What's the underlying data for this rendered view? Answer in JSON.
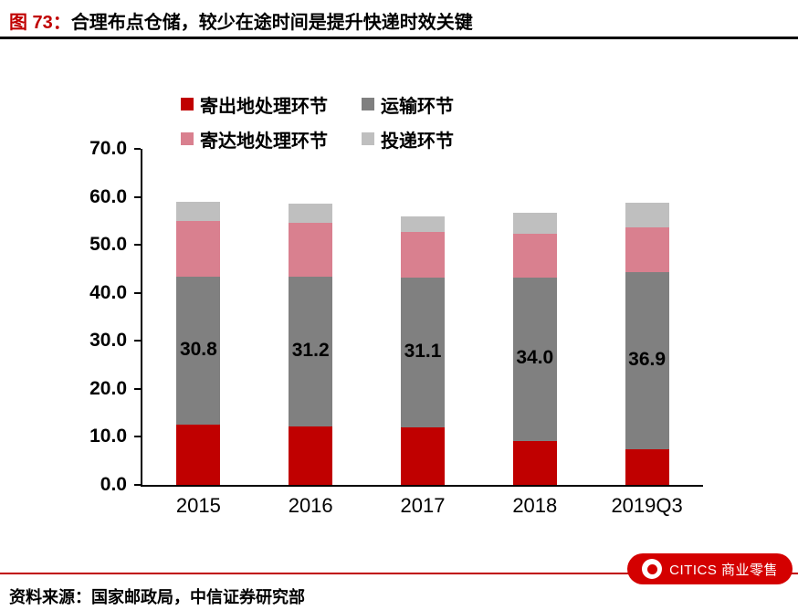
{
  "header": {
    "figure_label": "图 73：",
    "title": "合理布点仓储，较少在途时间是提升快递时效关键"
  },
  "chart_data": {
    "type": "bar",
    "stacked": true,
    "categories": [
      "2015",
      "2016",
      "2017",
      "2018",
      "2019Q3"
    ],
    "series": [
      {
        "name": "寄出地处理环节",
        "color": "#c00000",
        "values": [
          12.6,
          12.2,
          12.0,
          9.2,
          7.5
        ]
      },
      {
        "name": "运输环节",
        "color": "#808080",
        "values": [
          30.8,
          31.2,
          31.1,
          34.0,
          36.9
        ],
        "labels": [
          "30.8",
          "31.2",
          "31.1",
          "34.0",
          "36.9"
        ]
      },
      {
        "name": "寄达地处理环节",
        "color": "#d9808f",
        "values": [
          11.6,
          11.1,
          9.6,
          9.2,
          9.3
        ]
      },
      {
        "name": "投递环节",
        "color": "#bfbfbf",
        "values": [
          4.0,
          4.0,
          3.3,
          4.3,
          5.1
        ]
      }
    ],
    "ylim": [
      0,
      70
    ],
    "ytick_step": 10,
    "ytick_labels": [
      "0.0",
      "10.0",
      "20.0",
      "30.0",
      "40.0",
      "50.0",
      "60.0",
      "70.0"
    ],
    "legend_position": "top",
    "grid": false,
    "accent_color": "#c00000"
  },
  "footer": {
    "source": "资料来源：国家邮政局，中信证券研究部",
    "logo_text": "CITICS 商业零售"
  }
}
